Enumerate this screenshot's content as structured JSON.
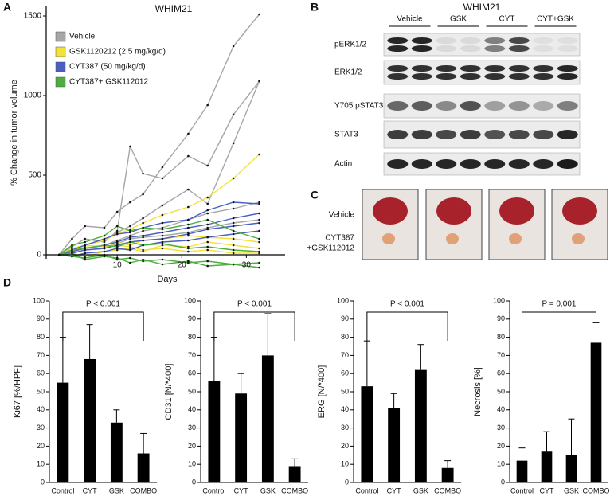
{
  "panel_labels": [
    "A",
    "B",
    "C",
    "D"
  ],
  "blot": {
    "title": "WHIM21",
    "groups": [
      "Vehicle",
      "GSK",
      "CYT",
      "CYT+GSK"
    ],
    "rows": [
      "pERK1/2",
      "ERK1/2",
      "Y705 pSTAT3",
      "STAT3",
      "Actin"
    ]
  },
  "photos": {
    "rows": [
      [
        "Vehicle"
      ],
      [
        "CYT387",
        "+GSK112012"
      ]
    ]
  },
  "chart_data": [
    {
      "type": "line",
      "title": "WHIM21",
      "xlabel": "Days",
      "ylabel": "% Change in tumor volume",
      "x": [
        1,
        3,
        5,
        8,
        10,
        12,
        14,
        17,
        21,
        24,
        28,
        32
      ],
      "xlim": [
        -1,
        36
      ],
      "xticks": [
        10,
        20,
        30
      ],
      "ylim": [
        -25,
        1560
      ],
      "yticks": [
        0,
        500,
        1000,
        1500
      ],
      "legend": "upper left",
      "series": [
        {
          "name": "Vehicle",
          "color": "#a6a6a6",
          "mice": [
            [
              0,
              100,
              180,
              170,
              270,
              330,
              380,
              550,
              760,
              940,
              1310,
              1510
            ],
            [
              0,
              50,
              100,
              80,
              150,
              680,
              510,
              480,
              620,
              560,
              880,
              1090
            ],
            [
              0,
              30,
              60,
              90,
              140,
              180,
              230,
              310,
              410,
              320,
              700,
              1090
            ],
            [
              0,
              20,
              40,
              60,
              90,
              120,
              150,
              170,
              220,
              260,
              290,
              330
            ],
            [
              0,
              10,
              30,
              40,
              70,
              100,
              110,
              120,
              140,
              170,
              200,
              220
            ]
          ]
        },
        {
          "name": "GSK1120212 (2.5 mg/kg/d)",
          "color": "#f2e23a",
          "mice": [
            [
              0,
              20,
              60,
              90,
              130,
              160,
              200,
              250,
              300,
              360,
              480,
              630
            ],
            [
              0,
              30,
              50,
              40,
              80,
              60,
              90,
              100,
              120,
              110,
              100,
              80
            ],
            [
              0,
              10,
              -10,
              20,
              30,
              40,
              20,
              60,
              50,
              80,
              60,
              40
            ],
            [
              0,
              40,
              60,
              50,
              60,
              50,
              30,
              40,
              20,
              30,
              10,
              10
            ]
          ]
        },
        {
          "name": "CYT387 (50 mg/kg/d)",
          "color": "#4a5fc1",
          "mice": [
            [
              0,
              30,
              60,
              100,
              130,
              140,
              170,
              200,
              220,
              280,
              330,
              320
            ],
            [
              0,
              20,
              40,
              60,
              80,
              110,
              120,
              140,
              170,
              190,
              230,
              260
            ],
            [
              0,
              10,
              30,
              40,
              60,
              80,
              90,
              100,
              130,
              160,
              180,
              200
            ],
            [
              0,
              -10,
              10,
              20,
              40,
              30,
              60,
              80,
              90,
              110,
              130,
              150
            ]
          ]
        },
        {
          "name": "CYT387+ GSK112012",
          "color": "#4cae3c",
          "mice": [
            [
              0,
              60,
              80,
              120,
              180,
              150,
              170,
              160,
              190,
              220,
              150,
              100
            ],
            [
              0,
              30,
              40,
              60,
              50,
              80,
              60,
              70,
              40,
              50,
              30,
              20
            ],
            [
              0,
              -10,
              -20,
              0,
              -30,
              -20,
              -40,
              -30,
              -50,
              -40,
              -60,
              -50
            ],
            [
              0,
              10,
              -30,
              -10,
              -20,
              -50,
              -30,
              -60,
              -40,
              -70,
              -60,
              -80
            ]
          ]
        }
      ]
    },
    {
      "type": "bar",
      "ylabel": "Ki67 [%/HPF]",
      "annotation": "P < 0.001",
      "categories": [
        "Control",
        "CYT",
        "GSK",
        "COMBO"
      ],
      "values": [
        55,
        68,
        33,
        16
      ],
      "errors": [
        25,
        19,
        7,
        11
      ],
      "color": "#000000",
      "ylim": [
        0,
        100
      ],
      "yticks": [
        0,
        10,
        20,
        30,
        40,
        50,
        60,
        70,
        80,
        90,
        100
      ]
    },
    {
      "type": "bar",
      "ylabel": "CD31 [N/*400]",
      "annotation": "P < 0.001",
      "categories": [
        "Control",
        "CYT",
        "GSK",
        "COMBO"
      ],
      "values": [
        56,
        49,
        70,
        9
      ],
      "errors": [
        24,
        11,
        23,
        4
      ],
      "color": "#000000",
      "ylim": [
        0,
        100
      ],
      "yticks": [
        0,
        10,
        20,
        30,
        40,
        50,
        60,
        70,
        80,
        90,
        100
      ]
    },
    {
      "type": "bar",
      "ylabel": "ERG [N/*400]",
      "annotation": "P < 0.001",
      "categories": [
        "Control",
        "CYT",
        "GSK",
        "COMBO"
      ],
      "values": [
        53,
        41,
        62,
        8
      ],
      "errors": [
        25,
        8,
        14,
        4
      ],
      "color": "#000000",
      "ylim": [
        0,
        100
      ],
      "yticks": [
        0,
        10,
        20,
        30,
        40,
        50,
        60,
        70,
        80,
        90,
        100
      ]
    },
    {
      "type": "bar",
      "ylabel": "Necrosis [%]",
      "annotation": "P = 0.001",
      "categories": [
        "Control",
        "CYT",
        "GSK",
        "COMBO"
      ],
      "values": [
        12,
        17,
        15,
        77
      ],
      "errors": [
        7,
        11,
        20,
        11
      ],
      "color": "#000000",
      "ylim": [
        0,
        100
      ],
      "yticks": [
        0,
        10,
        20,
        30,
        40,
        50,
        60,
        70,
        80,
        90,
        100
      ]
    }
  ]
}
